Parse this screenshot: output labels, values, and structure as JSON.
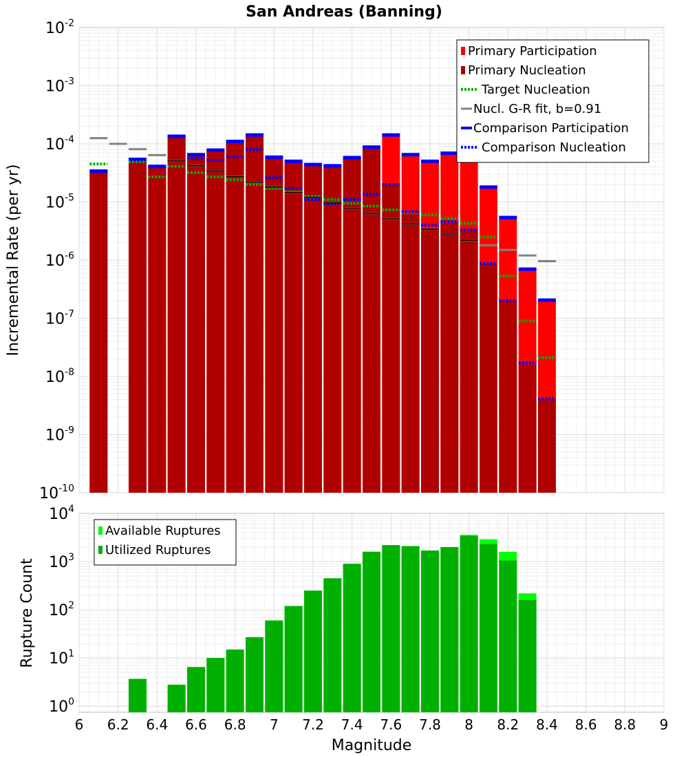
{
  "chart_data": [
    {
      "type": "bar",
      "title": "San Andreas (Banning)",
      "ylabel": "Incremental Rate (per yr)",
      "xlabel": "",
      "y_scale": "log",
      "ylim": [
        1e-10,
        0.01
      ],
      "xlim": [
        6,
        9
      ],
      "x": [
        6.1,
        6.2,
        6.3,
        6.4,
        6.5,
        6.6,
        6.7,
        6.8,
        6.9,
        7.0,
        7.1,
        7.2,
        7.3,
        7.4,
        7.5,
        7.6,
        7.7,
        7.8,
        7.9,
        8.0,
        8.1,
        8.2,
        8.3,
        8.4,
        8.5
      ],
      "series": [
        {
          "name": "Primary Participation",
          "color": "#ff0000",
          "style": "bar",
          "values": [
            3.3e-05,
            null,
            5.2e-05,
            4e-05,
            0.00013,
            6.2e-05,
            7.5e-05,
            0.000107,
            0.000138,
            5.7e-05,
            4.8e-05,
            4.3e-05,
            4.1e-05,
            5.6e-05,
            8.5e-05,
            0.000138,
            6.3e-05,
            4.9e-05,
            6.6e-05,
            5.6e-05,
            1.75e-05,
            5.2e-06,
            6.8e-07,
            2e-07,
            null
          ]
        },
        {
          "name": "Primary Nucleation",
          "color": "#b00000",
          "style": "bar",
          "values": [
            3.3e-05,
            null,
            5.2e-05,
            4e-05,
            0.00013,
            6.2e-05,
            7.5e-05,
            0.000107,
            0.000138,
            5.7e-05,
            4.8e-05,
            4.3e-05,
            4.1e-05,
            5.6e-05,
            8.5e-05,
            2e-05,
            6.3e-06,
            3.5e-06,
            4.4e-06,
            3.2e-06,
            8.5e-07,
            2e-07,
            1.6e-08,
            4e-09,
            null
          ]
        },
        {
          "name": "Target Nucleation",
          "color": "#00b000",
          "style": "dotted",
          "values": [
            4.5e-05,
            null,
            4.9e-05,
            2.7e-05,
            4.1e-05,
            3.2e-05,
            2.7e-05,
            2.4e-05,
            2e-05,
            1.7e-05,
            1.5e-05,
            1.25e-05,
            1.1e-05,
            9.5e-06,
            8.5e-06,
            7.3e-06,
            6.5e-06,
            6e-06,
            5.2e-06,
            4.3e-06,
            2.5e-06,
            5.3e-07,
            9e-08,
            2.1e-08,
            null
          ]
        },
        {
          "name": "Nucl. G-R fit, b=0.91",
          "color": "#808080",
          "style": "solid",
          "values": [
            0.000125,
            0.0001,
            8.1e-05,
            6.4e-05,
            5.1e-05,
            4.2e-05,
            3.4e-05,
            2.7e-05,
            2.2e-05,
            1.8e-05,
            1.45e-05,
            1.2e-05,
            9.6e-06,
            7.8e-06,
            6.3e-06,
            5.1e-06,
            4.2e-06,
            3.4e-06,
            2.7e-06,
            2.2e-06,
            1.8e-06,
            1.5e-06,
            1.2e-06,
            9.6e-07,
            null
          ]
        },
        {
          "name": "Comparison Participation",
          "color": "#0000ff",
          "style": "solid",
          "values": [
            3.4e-05,
            null,
            5.4e-05,
            4.1e-05,
            0.000135,
            6.5e-05,
            7.8e-05,
            0.00011,
            0.000142,
            5.9e-05,
            5e-05,
            4.4e-05,
            4.2e-05,
            5.8e-05,
            8.8e-05,
            0.000142,
            6.5e-05,
            5e-05,
            6.9e-05,
            5.8e-05,
            1.8e-05,
            5.4e-06,
            7e-07,
            2.05e-07,
            null
          ]
        },
        {
          "name": "Comparison Nucleation",
          "color": "#0000ff",
          "style": "dotted",
          "values": [
            3.4e-05,
            null,
            5.4e-05,
            4.1e-05,
            0.000135,
            5.6e-05,
            5.2e-05,
            6e-05,
            8e-05,
            2.6e-05,
            1.7e-05,
            1.1e-05,
            9.3e-06,
            1.1e-05,
            1.35e-05,
            2e-05,
            6.8e-06,
            4e-06,
            4.6e-06,
            3.3e-06,
            8.7e-07,
            2e-07,
            1.7e-08,
            4.1e-09,
            null
          ]
        }
      ],
      "legend_position": "top-right",
      "grid": true
    },
    {
      "type": "bar",
      "title": "",
      "ylabel": "Rupture Count",
      "xlabel": "Magnitude",
      "y_scale": "log",
      "ylim": [
        0.75,
        10000
      ],
      "xlim": [
        6,
        9
      ],
      "x": [
        6.1,
        6.2,
        6.3,
        6.4,
        6.5,
        6.6,
        6.7,
        6.8,
        6.9,
        7.0,
        7.1,
        7.2,
        7.3,
        7.4,
        7.5,
        7.6,
        7.7,
        7.8,
        7.9,
        8.0,
        8.1,
        8.2,
        8.3,
        8.4
      ],
      "series": [
        {
          "name": "Available Ruptures",
          "color": "#00ff00",
          "values": [
            null,
            null,
            3.7,
            null,
            2.8,
            6.5,
            10,
            15,
            27,
            60,
            120,
            250,
            450,
            900,
            1600,
            2200,
            2100,
            1700,
            2000,
            3600,
            2900,
            1600,
            220,
            null
          ]
        },
        {
          "name": "Utilized Ruptures",
          "color": "#00b000",
          "values": [
            null,
            null,
            3.7,
            null,
            2.8,
            6.5,
            10,
            15,
            27,
            60,
            120,
            250,
            450,
            900,
            1600,
            2200,
            2100,
            1700,
            2000,
            3400,
            2300,
            1050,
            160,
            null
          ]
        }
      ],
      "legend_position": "top-left",
      "grid": true
    }
  ],
  "x_ticks": [
    "6",
    "6.2",
    "6.4",
    "6.6",
    "6.8",
    "7",
    "7.2",
    "7.4",
    "7.6",
    "7.8",
    "8",
    "8.2",
    "8.4",
    "8.6",
    "8.8",
    "9"
  ],
  "top_y_ticks": [
    {
      "base": "10",
      "exp": "-2"
    },
    {
      "base": "10",
      "exp": "-3"
    },
    {
      "base": "10",
      "exp": "-4"
    },
    {
      "base": "10",
      "exp": "-5"
    },
    {
      "base": "10",
      "exp": "-6"
    },
    {
      "base": "10",
      "exp": "-7"
    },
    {
      "base": "10",
      "exp": "-8"
    },
    {
      "base": "10",
      "exp": "-9"
    },
    {
      "base": "10",
      "exp": "-10"
    }
  ],
  "bottom_y_ticks": [
    {
      "base": "10",
      "exp": "4"
    },
    {
      "base": "10",
      "exp": "3"
    },
    {
      "base": "10",
      "exp": "2"
    },
    {
      "base": "10",
      "exp": "1"
    },
    {
      "base": "10",
      "exp": "0"
    }
  ]
}
